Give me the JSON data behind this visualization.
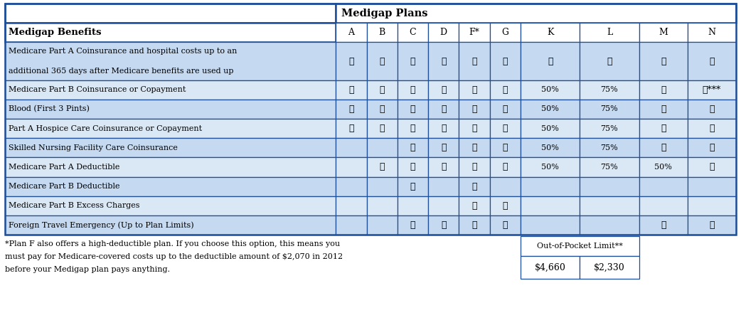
{
  "title": "Medigap Plans",
  "col_header": [
    "A",
    "B",
    "C",
    "D",
    "F*",
    "G",
    "K",
    "L",
    "M",
    "N"
  ],
  "row_header": "Medigap Benefits",
  "rows": [
    "Medicare Part A Coinsurance and hospital costs up to an\nadditional 365 days after Medicare benefits are used up",
    "Medicare Part B Coinsurance or Copayment",
    "Blood (First 3 Pints)",
    "Part A Hospice Care Coinsurance or Copayment",
    "Skilled Nursing Facility Care Coinsurance",
    "Medicare Part A Deductible",
    "Medicare Part B Deductible",
    "Medicare Part B Excess Charges",
    "Foreign Travel Emergency (Up to Plan Limits)"
  ],
  "cells": [
    [
      "✓",
      "✓",
      "✓",
      "✓",
      "✓",
      "✓",
      "✓",
      "✓",
      "✓",
      "✓"
    ],
    [
      "✓",
      "✓",
      "✓",
      "✓",
      "✓",
      "✓",
      "50%",
      "75%",
      "✓",
      "✓***"
    ],
    [
      "✓",
      "✓",
      "✓",
      "✓",
      "✓",
      "✓",
      "50%",
      "75%",
      "✓",
      "✓"
    ],
    [
      "✓",
      "✓",
      "✓",
      "✓",
      "✓",
      "✓",
      "50%",
      "75%",
      "✓",
      "✓"
    ],
    [
      "",
      "",
      "✓",
      "✓",
      "✓",
      "✓",
      "50%",
      "75%",
      "✓",
      "✓"
    ],
    [
      "",
      "✓",
      "✓",
      "✓",
      "✓",
      "✓",
      "50%",
      "75%",
      "50%",
      "✓"
    ],
    [
      "",
      "",
      "✓",
      "",
      "✓",
      "",
      "",
      "",
      "",
      ""
    ],
    [
      "",
      "",
      "",
      "",
      "✓",
      "✓",
      "",
      "",
      "",
      ""
    ],
    [
      "",
      "",
      "✓",
      "✓",
      "✓",
      "✓",
      "",
      "",
      "✓",
      "✓"
    ]
  ],
  "out_of_pocket_label": "Out-of-Pocket Limit**",
  "out_of_pocket_k": "$4,660",
  "out_of_pocket_l": "$2,330",
  "footnote": "*Plan F also offers a high-deductible plan. If you choose this option, this means you\nmust pay for Medicare-covered costs up to the deductible amount of $2,070 in 2012\nbefore your Medigap plan pays anything.",
  "bg_row_even": "#C5D9F1",
  "bg_row_odd": "#DAE8F5",
  "border_color": "#1F4E99",
  "header_border": "#1F4E99"
}
